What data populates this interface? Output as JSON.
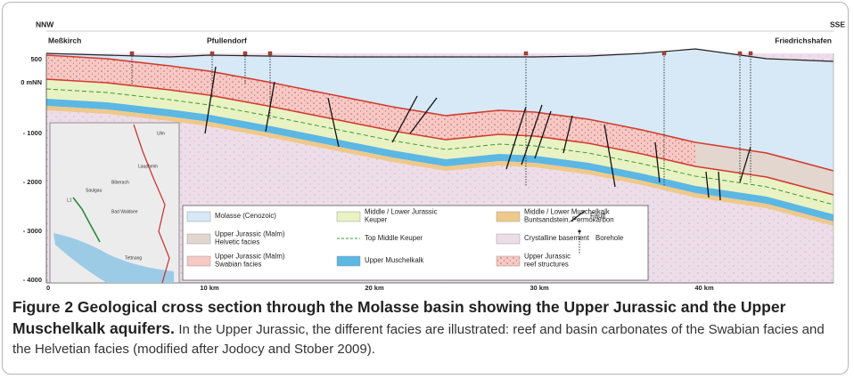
{
  "figure": {
    "direction_left": "NNW",
    "direction_right": "SSE",
    "places": [
      "Meßkirch",
      "Pfullendorf",
      "Friedrichshafen"
    ],
    "depth_labels": [
      "500",
      "0 mNN",
      "- 1000",
      "- 2000",
      "- 3000",
      "- 4000"
    ],
    "distance_labels": [
      "0",
      "10 km",
      "20 km",
      "30 km",
      "40 km"
    ],
    "map_labels": [
      "Ulm",
      "Laupheim",
      "Biberach",
      "Saulgau",
      "Bad Waldsee",
      "Tettnang",
      "L1"
    ],
    "legend": [
      {
        "lines": [
          "Molasse (Cenozoic)"
        ]
      },
      {
        "lines": [
          "Upper Jurassic (Malm)",
          "Helvetic facies"
        ]
      },
      {
        "lines": [
          "Upper Jurassic (Malm)",
          "Swabian facies"
        ]
      },
      {
        "lines": [
          "Middle / Lower Jurassic",
          "Keuper"
        ]
      },
      {
        "lines": [
          "Top Middle Keuper"
        ]
      },
      {
        "lines": [
          "Upper Muschelkalk"
        ]
      },
      {
        "lines": [
          "Middle / Lower Muschelkalk",
          "Buntsandstein, Permokarbon"
        ]
      },
      {
        "lines": [
          "Crystalline basement"
        ]
      },
      {
        "lines": [
          "Upper Jurassic",
          "reef structures"
        ]
      },
      {
        "lines": [
          "Fault"
        ]
      },
      {
        "lines": [
          "Borehole"
        ]
      }
    ]
  },
  "caption": {
    "title": "Figure 2 Geological cross section through the Molasse basin showing the Upper Jurassic and the Upper Muschelkalk aquifers.",
    "text": "In the Upper Jurassic, the different facies are illustrated: reef and basin carbonates of the Swabian facies and the Helvetian facies (modified after Jodocy and Stober 2009)."
  }
}
